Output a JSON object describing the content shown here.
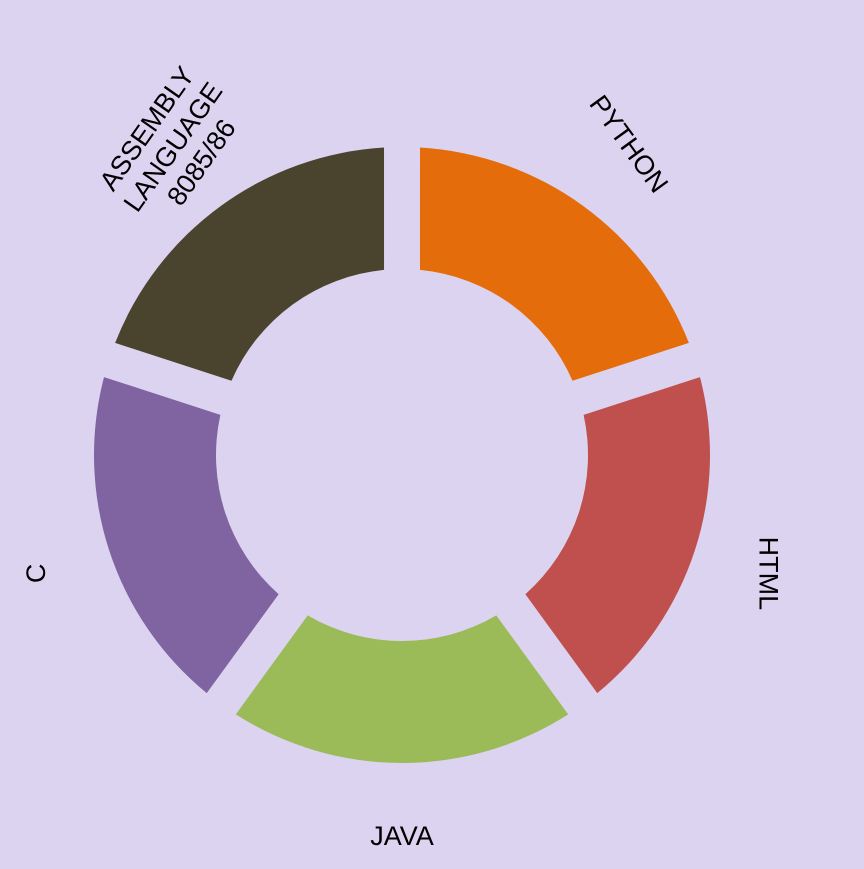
{
  "background": "#dcd3f1",
  "segments": [
    {
      "id": "python",
      "label_lines": [
        "PYTHON"
      ],
      "color": "#e46c0a"
    },
    {
      "id": "html",
      "label_lines": [
        "HTML"
      ],
      "color": "#c0504d"
    },
    {
      "id": "java",
      "label_lines": [
        "JAVA"
      ],
      "color": "#9bbb59"
    },
    {
      "id": "c",
      "label_lines": [
        "C"
      ],
      "color": "#8064a2"
    },
    {
      "id": "assembly",
      "label_lines": [
        "ASSEMBLY",
        "LANGUAGE",
        "8085/86"
      ],
      "color": "#4a432e"
    }
  ]
}
